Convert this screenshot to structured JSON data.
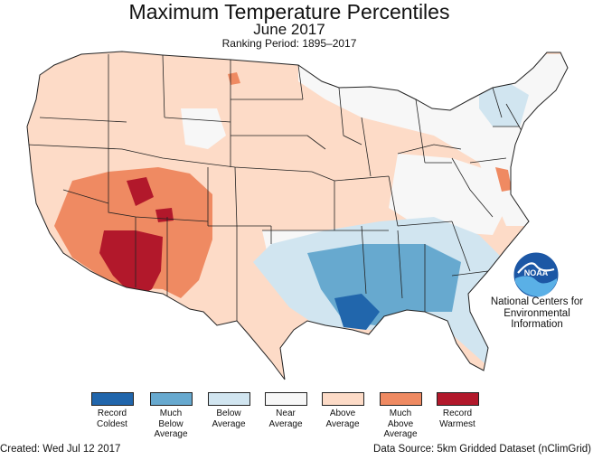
{
  "header": {
    "title": "Maximum Temperature Percentiles",
    "subtitle": "June 2017",
    "ranking_period": "Ranking Period: 1895–2017"
  },
  "agency": {
    "name": "National Centers for\nEnvironmental\nInformation",
    "logo_text": "NOAA",
    "logo_icon": "noaa-logo-icon"
  },
  "legend": [
    {
      "label": "Record\nColdest",
      "color": "#2166ac"
    },
    {
      "label": "Much\nBelow\nAverage",
      "color": "#67a9cf"
    },
    {
      "label": "Below\nAverage",
      "color": "#d1e5f0"
    },
    {
      "label": "Near\nAverage",
      "color": "#f7f7f7"
    },
    {
      "label": "Above\nAverage",
      "color": "#fddbc7"
    },
    {
      "label": "Much\nAbove\nAverage",
      "color": "#ef8a62"
    },
    {
      "label": "Record\nWarmest",
      "color": "#b2182b"
    }
  ],
  "footer": {
    "created": "Created: Wed Jul 12 2017",
    "source": "Data Source: 5km Gridded Dataset (nClimGrid)"
  }
}
